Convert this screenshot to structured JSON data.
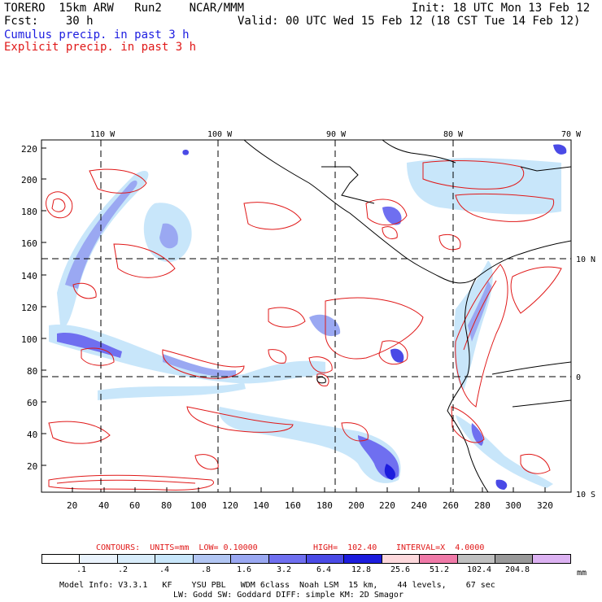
{
  "header": {
    "line1_left": "TORERO  15km ARW   Run2    NCAR/MMM",
    "line1_right": "Init: 18 UTC Mon 13 Feb 12",
    "line2_left": "Fcst:    30 h",
    "line2_right": "Valid: 00 UTC Wed 15 Feb 12 (18 CST Tue 14 Feb 12)",
    "field1": "Cumulus precip. in past 3 h",
    "field2": "Explicit precip. in past 3 h"
  },
  "map": {
    "lon_labels": [
      "110 W",
      "100 W",
      "90 W",
      "80 W",
      "70 W"
    ],
    "lat_labels": [
      "10 N",
      "0",
      "10 S"
    ],
    "y_ticks": [
      "220",
      "200",
      "180",
      "160",
      "140",
      "120",
      "100",
      "80",
      "60",
      "40",
      "20"
    ],
    "x_ticks": [
      "20",
      "40",
      "60",
      "80",
      "100",
      "120",
      "140",
      "160",
      "180",
      "200",
      "220",
      "240",
      "260",
      "280",
      "300",
      "320"
    ],
    "colors": {
      "cumulus_light": "#c8e6fa",
      "cumulus_mid": "#9aa8f2",
      "cumulus_dark": "#4a4ae6",
      "explicit_contour": "#e01818",
      "coast": "#000000"
    }
  },
  "contours_text": {
    "contours": "CONTOURS:  UNITS=mm  LOW= 0.10000",
    "high": "HIGH=  102.40",
    "interval": "INTERVAL=X  4.0000"
  },
  "colorbar": {
    "colors": [
      "#ffffff",
      "#eaf3fc",
      "#d8ecfa",
      "#c8e6fa",
      "#b2c6f3",
      "#9aa8f2",
      "#6f6ff0",
      "#4a4ae6",
      "#1c1cdd",
      "#fdd8dc",
      "#f07aa8",
      "#c0c0c0",
      "#999999",
      "#dcb2f2"
    ],
    "labels": [
      ".1",
      ".2",
      ".4",
      ".8",
      "1.6",
      "3.2",
      "6.4",
      "12.8",
      "25.6",
      "51.2",
      "102.4",
      "204.8"
    ],
    "units": "mm"
  },
  "footer": {
    "line1": "Model Info: V3.3.1   KF    YSU PBL   WDM 6class  Noah LSM  15 km,    44 levels,    67 sec",
    "line2": "LW: Godd SW: Goddard DIFF: simple KM: 2D Smagor"
  }
}
